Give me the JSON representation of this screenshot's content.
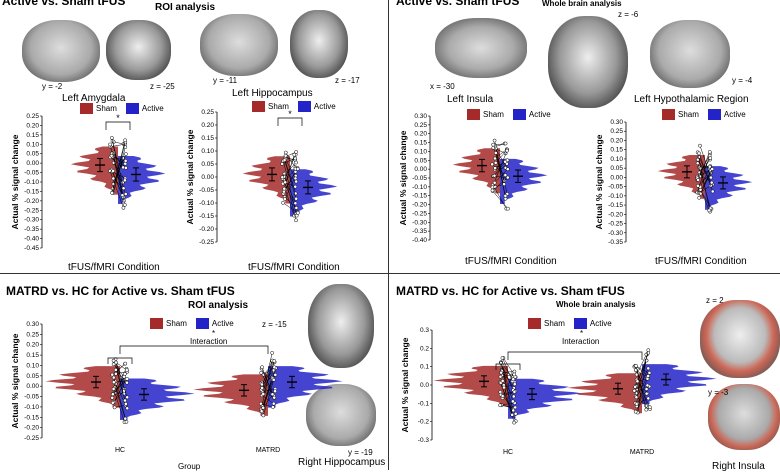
{
  "panels": {
    "tl": {
      "title": "Active vs. Sham tFUS",
      "subtitle": "ROI analysis",
      "slices": [
        "y = -2",
        "z = -25",
        "y = -11",
        "z = -17"
      ],
      "regions": [
        "Left Amygdala",
        "Left Hippocampus"
      ],
      "xlabel": "tFUS/fMRI Condition",
      "ylabel": "Actual % signal change",
      "sig": "*"
    },
    "tr": {
      "title": "Active vs. Sham tFUS",
      "subtitle": "Whole brain analysis",
      "slices": [
        "z = -6",
        "x = -30",
        "y = -4"
      ],
      "regions": [
        "Left Insula",
        "Left Hypothalamic Region"
      ],
      "xlabel": "tFUS/fMRI Condition",
      "ylabel": "Actual % signal change"
    },
    "bl": {
      "title": "MATRD vs. HC for Active vs. Sham tFUS",
      "subtitle": "ROI analysis",
      "slices": [
        "z = -15",
        "y = -19"
      ],
      "region": "Right Hippocampus",
      "xlabel": "Group",
      "ylabel": "Actual % signal change",
      "interaction": "Interaction",
      "sig": "*"
    },
    "br": {
      "title": "MATRD vs. HC for Active vs. Sham tFUS",
      "subtitle": "Whole brain analysis",
      "slices": [
        "z = 2",
        "y = -3"
      ],
      "region": "Right Insula",
      "ylabel": "Actual % signal change",
      "interaction": "Interaction",
      "sig": "*"
    }
  },
  "legend": {
    "sham": "Sham",
    "active": "Active"
  },
  "colors": {
    "sham": "#a52a2a",
    "active": "#2323c8"
  },
  "chart_data": [
    {
      "type": "violin",
      "panel": "tl-1",
      "ylim": [
        -0.45,
        0.25
      ],
      "yticks": [
        "0.25",
        "0.20",
        "0.15",
        "0.10",
        "0.05",
        "0.00",
        "-0.05",
        "-0.10",
        "-0.15",
        "-0.20",
        "-0.25",
        "-0.30",
        "-0.35",
        "-0.40",
        "-0.45"
      ],
      "series": [
        {
          "name": "Sham",
          "mean": -0.01
        },
        {
          "name": "Active",
          "mean": -0.06
        }
      ]
    },
    {
      "type": "violin",
      "panel": "tl-2",
      "ylim": [
        -0.25,
        0.25
      ],
      "yticks": [
        "0.25",
        "0.20",
        "0.15",
        "0.10",
        "0.05",
        "0.00",
        "-0.05",
        "-0.10",
        "-0.15",
        "-0.20",
        "-0.25"
      ],
      "series": [
        {
          "name": "Sham",
          "mean": 0.01
        },
        {
          "name": "Active",
          "mean": -0.04
        }
      ]
    },
    {
      "type": "violin",
      "panel": "tr-1",
      "ylim": [
        -0.4,
        0.3
      ],
      "yticks": [
        "0.30",
        "0.25",
        "0.20",
        "0.15",
        "0.10",
        "0.05",
        "0.00",
        "-0.05",
        "-0.10",
        "-0.15",
        "-0.20",
        "-0.25",
        "-0.30",
        "-0.35",
        "-0.40"
      ],
      "series": [
        {
          "name": "Sham",
          "mean": 0.02
        },
        {
          "name": "Active",
          "mean": -0.04
        }
      ]
    },
    {
      "type": "violin",
      "panel": "tr-2",
      "ylim": [
        -0.35,
        0.3
      ],
      "yticks": [
        "0.30",
        "0.25",
        "0.20",
        "0.15",
        "0.10",
        "0.05",
        "0.00",
        "-0.05",
        "-0.10",
        "-0.15",
        "-0.20",
        "-0.25",
        "-0.30",
        "-0.35"
      ],
      "series": [
        {
          "name": "Sham",
          "mean": 0.03
        },
        {
          "name": "Active",
          "mean": -0.03
        }
      ]
    },
    {
      "type": "violin",
      "panel": "bl",
      "categories": [
        "HC",
        "MATRD"
      ],
      "ylim": [
        -0.25,
        0.3
      ],
      "yticks": [
        "0.30",
        "0.25",
        "0.20",
        "0.15",
        "0.10",
        "0.05",
        "0.00",
        "-0.05",
        "-0.10",
        "-0.15",
        "-0.20",
        "-0.25"
      ],
      "series": [
        {
          "name": "Sham",
          "values": [
            0.02,
            -0.02
          ]
        },
        {
          "name": "Active",
          "values": [
            -0.04,
            0.02
          ]
        }
      ]
    },
    {
      "type": "violin",
      "panel": "br",
      "categories": [
        "HC",
        "MATRD"
      ],
      "ylim": [
        -0.3,
        0.3
      ],
      "yticks": [
        "0.3",
        "0.2",
        "0.1",
        "0.0",
        "-0.1",
        "-0.2",
        "-0.3"
      ],
      "series": [
        {
          "name": "Sham",
          "values": [
            0.02,
            -0.02
          ]
        },
        {
          "name": "Active",
          "values": [
            -0.05,
            0.03
          ]
        }
      ]
    }
  ]
}
